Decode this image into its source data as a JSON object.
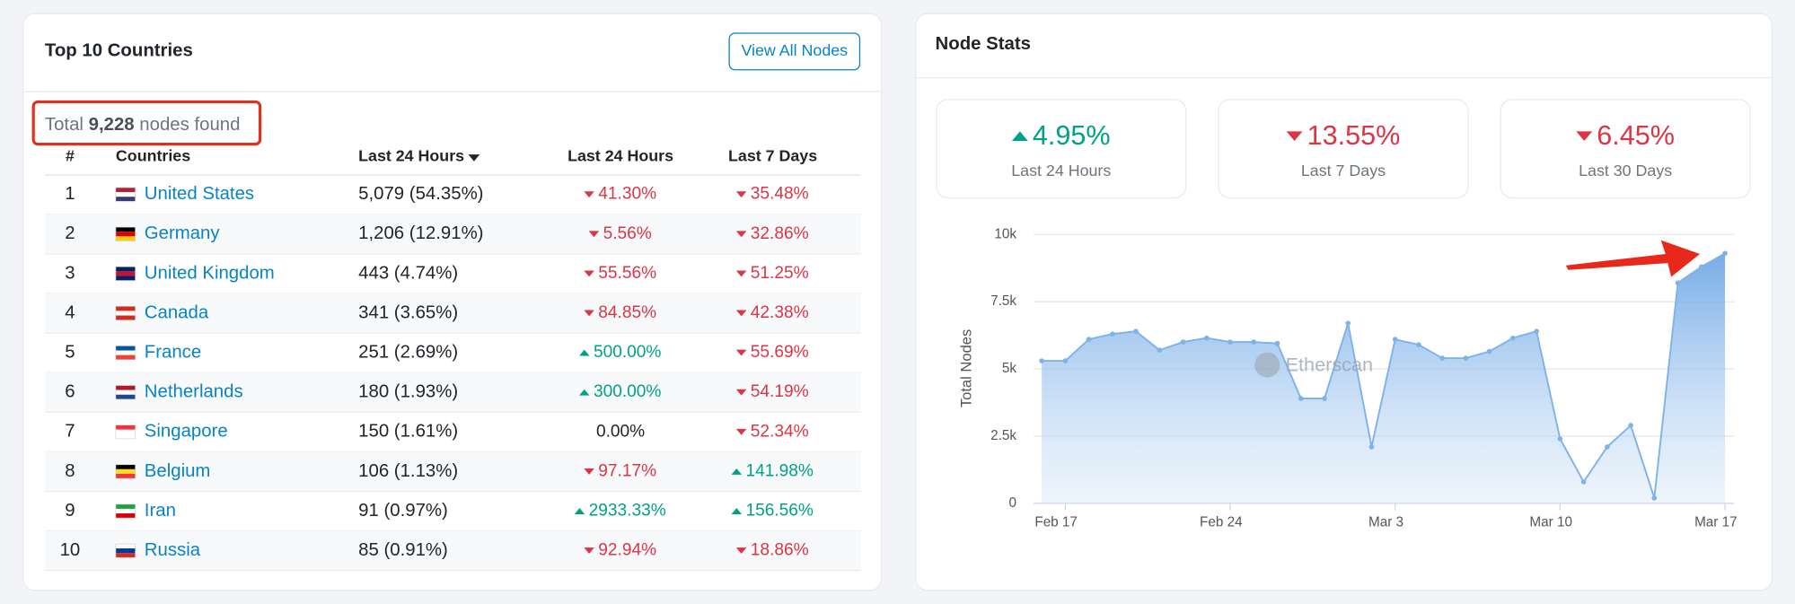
{
  "countries_panel": {
    "title": "Top 10 Countries",
    "button": "View All Nodes",
    "summary": {
      "prefix": "Total",
      "count": "9,228",
      "suffix": "nodes found"
    },
    "table": {
      "headers": [
        "#",
        "Countries",
        "Last 24 Hours",
        "Last 24 Hours",
        "Last 7 Days"
      ],
      "rows": [
        {
          "rank": "1",
          "country": "United States",
          "flag": [
            "#b22234",
            "#ffffff",
            "#3c3b6e"
          ],
          "nodes": "5,079 (54.35%)",
          "change_24h": {
            "text": "41.30%",
            "trend": "down"
          },
          "change_7d": {
            "text": "35.48%",
            "trend": "down"
          }
        },
        {
          "rank": "2",
          "country": "Germany",
          "flag": [
            "#000000",
            "#dd0000",
            "#ffce00"
          ],
          "nodes": "1,206 (12.91%)",
          "change_24h": {
            "text": "5.56%",
            "trend": "down"
          },
          "change_7d": {
            "text": "32.86%",
            "trend": "down"
          }
        },
        {
          "rank": "3",
          "country": "United Kingdom",
          "flag": [
            "#012169",
            "#c8102e",
            "#012169"
          ],
          "nodes": "443 (4.74%)",
          "change_24h": {
            "text": "55.56%",
            "trend": "down"
          },
          "change_7d": {
            "text": "51.25%",
            "trend": "down"
          }
        },
        {
          "rank": "4",
          "country": "Canada",
          "flag": [
            "#d52b1e",
            "#ffffff",
            "#d52b1e"
          ],
          "nodes": "341 (3.65%)",
          "change_24h": {
            "text": "84.85%",
            "trend": "down"
          },
          "change_7d": {
            "text": "42.38%",
            "trend": "down"
          }
        },
        {
          "rank": "5",
          "country": "France",
          "flag": [
            "#0055a4",
            "#ffffff",
            "#ef4135"
          ],
          "nodes": "251 (2.69%)",
          "change_24h": {
            "text": "500.00%",
            "trend": "up"
          },
          "change_7d": {
            "text": "55.69%",
            "trend": "down"
          }
        },
        {
          "rank": "6",
          "country": "Netherlands",
          "flag": [
            "#ae1c28",
            "#ffffff",
            "#21468b"
          ],
          "nodes": "180 (1.93%)",
          "change_24h": {
            "text": "300.00%",
            "trend": "up"
          },
          "change_7d": {
            "text": "54.19%",
            "trend": "down"
          }
        },
        {
          "rank": "7",
          "country": "Singapore",
          "flag": [
            "#ef3340",
            "#ffffff",
            "#ffffff"
          ],
          "nodes": "150 (1.61%)",
          "change_24h": {
            "text": "0.00%",
            "trend": "flat"
          },
          "change_7d": {
            "text": "52.34%",
            "trend": "down"
          }
        },
        {
          "rank": "8",
          "country": "Belgium",
          "flag": [
            "#000000",
            "#fdda24",
            "#ef3340"
          ],
          "nodes": "106 (1.13%)",
          "change_24h": {
            "text": "97.17%",
            "trend": "down"
          },
          "change_7d": {
            "text": "141.98%",
            "trend": "up"
          }
        },
        {
          "rank": "9",
          "country": "Iran",
          "flag": [
            "#239f40",
            "#ffffff",
            "#da0000"
          ],
          "nodes": "91 (0.97%)",
          "change_24h": {
            "text": "2933.33%",
            "trend": "up"
          },
          "change_7d": {
            "text": "156.56%",
            "trend": "up"
          }
        },
        {
          "rank": "10",
          "country": "Russia",
          "flag": [
            "#ffffff",
            "#0039a6",
            "#d52b1e"
          ],
          "nodes": "85 (0.91%)",
          "change_24h": {
            "text": "92.94%",
            "trend": "down"
          },
          "change_7d": {
            "text": "18.86%",
            "trend": "down"
          }
        }
      ]
    }
  },
  "node_stats_panel": {
    "title": "Node Stats",
    "cards": [
      {
        "value": "4.95%",
        "label": "Last 24 Hours",
        "trend": "up"
      },
      {
        "value": "13.55%",
        "label": "Last 7 Days",
        "trend": "down"
      },
      {
        "value": "6.45%",
        "label": "Last 30 Days",
        "trend": "down"
      }
    ],
    "chart_data": {
      "type": "area",
      "y_label": "Total Nodes",
      "watermark": "Etherscan",
      "color": "#7fb2ea",
      "categories": [
        null,
        "Feb 17",
        null,
        null,
        null,
        null,
        null,
        null,
        "Feb 24",
        null,
        null,
        null,
        null,
        null,
        null,
        "Mar 3",
        null,
        null,
        null,
        null,
        null,
        null,
        "Mar 10",
        null,
        null,
        null,
        null,
        null,
        null,
        "Mar 17"
      ],
      "values": [
        5300,
        5300,
        6100,
        6300,
        6400,
        5700,
        6000,
        6150,
        6000,
        6000,
        5950,
        3900,
        3900,
        6700,
        2100,
        6100,
        5900,
        5400,
        5400,
        5650,
        6150,
        6400,
        2400,
        800,
        2100,
        2900,
        200,
        8200,
        8800,
        9300
      ],
      "ylim": [
        0,
        10000
      ],
      "yticks": [
        0,
        {
          "value": 2500,
          "label": "2.5k"
        },
        {
          "value": 5000,
          "label": "5k"
        },
        {
          "value": 7500,
          "label": "7.5k"
        },
        {
          "value": 10000,
          "label": "10k"
        }
      ],
      "grid": true
    }
  }
}
